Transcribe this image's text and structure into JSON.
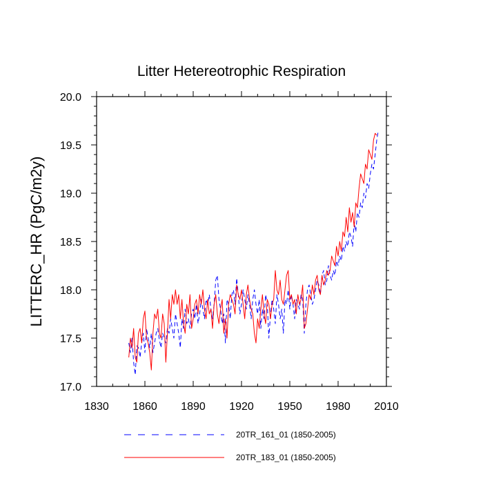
{
  "chart_data": {
    "type": "line",
    "title": "Litter Hetereotrophic Respiration",
    "xlabel": "",
    "ylabel": "LITTERC_HR  (PgC/m2y)",
    "xlim": [
      1830,
      2010
    ],
    "ylim": [
      17.0,
      20.0
    ],
    "xticks": [
      1830,
      1860,
      1890,
      1920,
      1950,
      1980,
      2010
    ],
    "yticks": [
      17.0,
      17.5,
      18.0,
      18.5,
      19.0,
      19.5,
      20.0
    ],
    "xtick_labels": [
      "1830",
      "1860",
      "1890",
      "1920",
      "1950",
      "1980",
      "2010"
    ],
    "ytick_labels": [
      "17.0",
      "17.5",
      "18.0",
      "18.5",
      "19.0",
      "19.5",
      "20.0"
    ],
    "grid": false,
    "legend_position": "bottom",
    "x_start": 1850,
    "series": [
      {
        "name": "20TR_161_01 (1850-2005)",
        "color": "#0000ff",
        "dash": "dashed",
        "values": [
          17.45,
          17.35,
          17.5,
          17.25,
          17.12,
          17.42,
          17.4,
          17.3,
          17.45,
          17.55,
          17.35,
          17.6,
          17.5,
          17.4,
          17.55,
          17.35,
          17.45,
          17.55,
          17.6,
          17.48,
          17.4,
          17.55,
          17.5,
          17.45,
          17.6,
          17.55,
          17.7,
          17.6,
          17.5,
          17.75,
          17.65,
          17.55,
          17.4,
          17.7,
          17.6,
          17.8,
          17.65,
          17.7,
          17.6,
          17.75,
          17.8,
          17.7,
          17.85,
          17.65,
          17.75,
          17.9,
          17.8,
          17.7,
          17.9,
          17.85,
          17.95,
          17.8,
          17.7,
          17.85,
          18.1,
          18.15,
          17.9,
          17.8,
          17.65,
          17.75,
          17.45,
          17.9,
          17.85,
          17.7,
          17.95,
          18.0,
          17.85,
          18.12,
          17.95,
          17.75,
          17.85,
          18.0,
          17.9,
          17.8,
          17.95,
          17.85,
          17.7,
          17.9,
          18.0,
          17.85,
          17.75,
          17.9,
          17.6,
          17.8,
          17.7,
          17.95,
          17.85,
          17.5,
          17.75,
          17.9,
          17.8,
          17.65,
          17.95,
          17.85,
          17.7,
          17.8,
          17.55,
          17.9,
          17.85,
          18.0,
          17.8,
          17.95,
          17.85,
          17.7,
          17.9,
          17.85,
          17.8,
          17.95,
          17.9,
          17.55,
          17.85,
          18.0,
          18.05,
          17.95,
          17.85,
          17.9,
          18.0,
          18.1,
          18.05,
          17.95,
          18.15,
          18.2,
          18.05,
          18.1,
          18.25,
          18.15,
          18.1,
          18.2,
          18.15,
          18.3,
          18.25,
          18.35,
          18.3,
          18.45,
          18.4,
          18.5,
          18.45,
          18.6,
          18.55,
          18.45,
          18.7,
          18.6,
          18.8,
          18.75,
          18.9,
          18.85,
          19.0,
          18.95,
          19.1,
          19.05,
          19.2,
          19.3,
          19.25,
          19.4,
          19.55,
          19.65
        ]
      },
      {
        "name": "20TR_183_01 (1850-2005)",
        "color": "#ff0000",
        "dash": "solid",
        "values": [
          17.3,
          17.5,
          17.4,
          17.6,
          17.3,
          17.25,
          17.55,
          17.6,
          17.45,
          17.7,
          17.78,
          17.5,
          17.45,
          17.35,
          17.17,
          17.55,
          17.75,
          17.7,
          17.8,
          17.55,
          17.5,
          17.75,
          17.65,
          17.25,
          17.55,
          17.9,
          17.7,
          17.95,
          17.85,
          18.0,
          17.85,
          17.95,
          17.7,
          17.9,
          17.65,
          17.55,
          17.85,
          17.75,
          17.95,
          17.6,
          17.7,
          17.85,
          17.9,
          17.75,
          17.95,
          17.85,
          18.0,
          17.8,
          17.7,
          17.9,
          17.75,
          17.8,
          17.6,
          17.85,
          17.95,
          17.75,
          17.65,
          17.8,
          17.9,
          17.55,
          17.7,
          17.5,
          17.85,
          17.95,
          17.9,
          17.85,
          17.75,
          18.05,
          17.95,
          17.9,
          18.0,
          17.85,
          17.7,
          17.95,
          18.05,
          17.9,
          17.8,
          17.75,
          17.55,
          17.45,
          17.7,
          17.6,
          17.8,
          17.95,
          17.75,
          17.65,
          17.9,
          17.85,
          17.7,
          17.85,
          17.9,
          18.2,
          18.0,
          17.95,
          18.1,
          17.9,
          17.85,
          18.0,
          18.15,
          18.2,
          17.9,
          17.95,
          17.85,
          17.9,
          17.75,
          17.95,
          17.85,
          17.9,
          18.05,
          17.6,
          17.65,
          17.8,
          17.95,
          17.9,
          18.05,
          17.95,
          18.1,
          18.15,
          18.0,
          17.95,
          18.15,
          18.05,
          18.1,
          18.2,
          18.15,
          18.2,
          18.35,
          18.3,
          18.25,
          18.45,
          18.35,
          18.5,
          18.4,
          18.6,
          18.55,
          18.75,
          18.6,
          18.85,
          18.7,
          18.8,
          18.65,
          18.9,
          18.85,
          19.05,
          19.2,
          19.15,
          19.1,
          19.3,
          19.25,
          19.45,
          19.4,
          19.35,
          19.55,
          19.62,
          19.6
        ]
      }
    ]
  }
}
